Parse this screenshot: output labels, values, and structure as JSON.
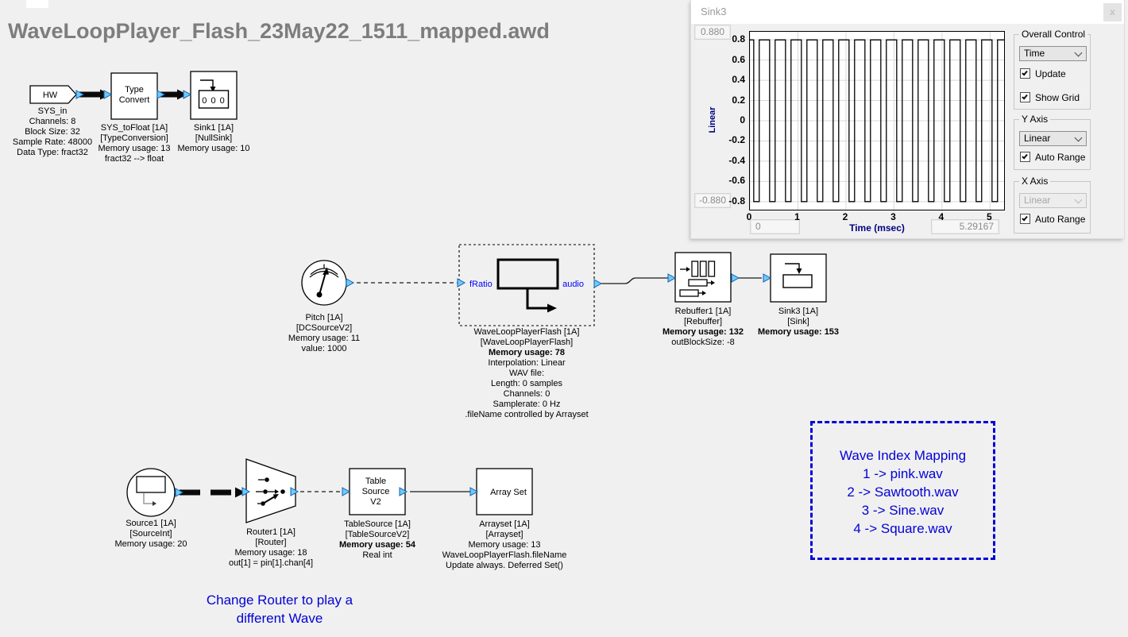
{
  "theme": {
    "canvas_bg": "#f0f0f0",
    "title_gray": "#7d7d7d",
    "annotation_blue": "#0202d6",
    "pin_fill": "#74c9f2",
    "pin_border": "#0b62b8",
    "axis_navy": "#000080",
    "wire_black": "#0a0a0a"
  },
  "page": {
    "title": "WaveLoopPlayer_Flash_23May22_1511_mapped.awd"
  },
  "diagram": {
    "blocks": {
      "sys_in": {
        "port_label": "HW",
        "caption": [
          "SYS_in",
          "Channels: 8",
          "Block Size: 32",
          "Sample Rate: 48000",
          "Data Type: fract32"
        ]
      },
      "type_convert": {
        "icon_text": [
          "Type",
          "Convert"
        ],
        "caption": [
          "SYS_toFloat [1A]",
          "[TypeConversion]",
          "Memory usage: 13",
          "fract32 --> float"
        ]
      },
      "sink1": {
        "icon_text": "0 0 0",
        "caption": [
          "Sink1 [1A]",
          "[NullSink]",
          "Memory usage: 10"
        ]
      },
      "pitch": {
        "caption": [
          "Pitch [1A]",
          "[DCSourceV2]",
          "Memory usage: 11",
          "value: 1000"
        ]
      },
      "wave_loop_player": {
        "input_pin": "fRatio",
        "output_pin": "audio",
        "caption": [
          "WaveLoopPlayerFlash [1A]",
          "[WaveLoopPlayerFlash]",
          "Memory usage: 78",
          "Interpolation: Linear",
          "WAV file:",
          "Length: 0 samples",
          "Channels: 0",
          "Samplerate: 0 Hz",
          ".fileName controlled by Arrayset"
        ]
      },
      "rebuffer1": {
        "caption": [
          "Rebuffer1 [1A]",
          "[Rebuffer]",
          "Memory usage: 132",
          "outBlockSize: -8"
        ]
      },
      "sink3_block": {
        "caption": [
          "Sink3 [1A]",
          "[Sink]",
          "Memory usage: 153"
        ]
      },
      "source1": {
        "caption": [
          "Source1 [1A]",
          "[SourceInt]",
          "Memory usage: 20"
        ]
      },
      "router1": {
        "caption": [
          "Router1 [1A]",
          "[Router]",
          "Memory usage: 18",
          "out[1] = pin[1].chan[4]"
        ]
      },
      "table_source": {
        "icon_text": [
          "Table",
          "Source",
          "V2"
        ],
        "caption": [
          "TableSource [1A]",
          "[TableSourceV2]",
          "Memory usage: 54",
          "Real int"
        ]
      },
      "array_set": {
        "icon_text": "Array Set",
        "caption": [
          "Arrayset [1A]",
          "[Arrayset]",
          "Memory usage: 13",
          "WaveLoopPlayerFlash.fileName",
          "Update always. Deferred Set()"
        ]
      }
    },
    "annotations": {
      "wave_index_mapping": [
        "Wave Index Mapping",
        "1 -> pink.wav",
        "2 -> Sawtooth.wav",
        "3 -> Sine.wav",
        "4 -> Square.wav"
      ],
      "router_note": [
        "Change Router to play a",
        "different Wave"
      ]
    }
  },
  "sink3_window": {
    "title": "Sink3",
    "close_label": "x",
    "y_max_box": "0.880",
    "y_min_box": "-0.880",
    "x_min_box": "0",
    "x_max_box": "5.29167",
    "groups": {
      "overall": {
        "label": "Overall Control",
        "dropdown": "Time",
        "checkboxes": [
          {
            "label": "Update",
            "checked": true
          },
          {
            "label": "Show Grid",
            "checked": true
          }
        ]
      },
      "y_axis": {
        "label": "Y Axis",
        "dropdown": "Linear",
        "checkboxes": [
          {
            "label": "Auto Range",
            "checked": true
          }
        ]
      },
      "x_axis": {
        "label": "X Axis",
        "dropdown": "Linear",
        "disabled": true,
        "checkboxes": [
          {
            "label": "Auto Range",
            "checked": true
          }
        ]
      }
    },
    "chart_data": {
      "type": "line",
      "waveform": "square",
      "xlabel": "Time (msec)",
      "ylabel": "Linear",
      "x_range": [
        0,
        5.29167
      ],
      "y_range": [
        -0.88,
        0.88
      ],
      "grid": true,
      "square_wave": {
        "high": 0.8,
        "low": -0.8,
        "period_msec": 0.3307,
        "first_fall_msec": 0.08,
        "low_duration_msec": 0.115
      },
      "x_ticks": [
        0,
        1,
        2,
        3,
        4,
        5
      ],
      "x_tick_labels": [
        "0",
        "1",
        "2",
        "3",
        "4",
        "5"
      ],
      "y_ticks": [
        0.8,
        0.6,
        0.4,
        0.2,
        0,
        -0.2,
        -0.4,
        -0.6,
        -0.8
      ],
      "y_tick_labels": [
        "0.8",
        "0.6",
        "0.4",
        "0.2",
        "0",
        "-0.2",
        "-0.4",
        "-0.6",
        "-0.8"
      ]
    }
  }
}
